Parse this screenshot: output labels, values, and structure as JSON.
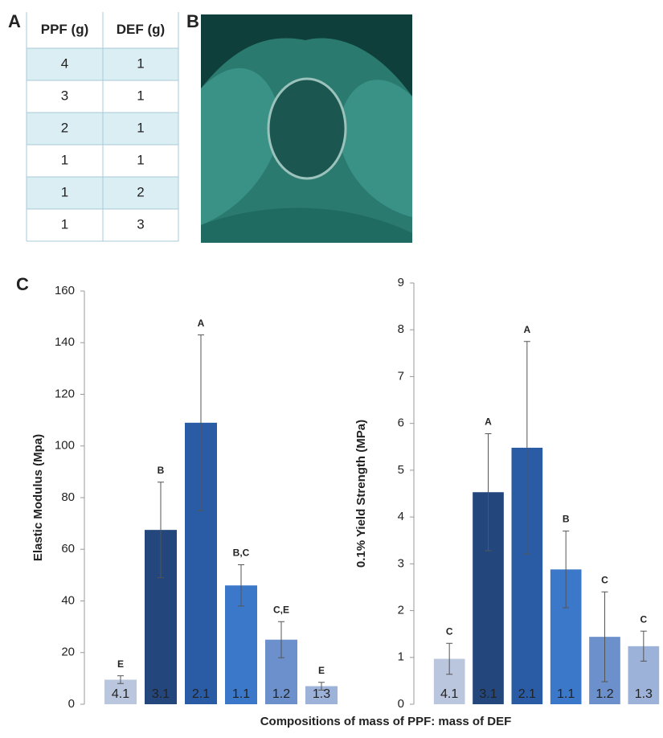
{
  "panel_labels": [
    "A",
    "B",
    "C"
  ],
  "table": {
    "header": [
      "PPF (g)",
      "DEF (g)"
    ],
    "rows": [
      [
        4,
        1
      ],
      [
        3,
        1
      ],
      [
        2,
        1
      ],
      [
        1,
        1
      ],
      [
        1,
        2
      ],
      [
        1,
        3
      ]
    ]
  },
  "x_label": "Compositions of mass of PPF: mass of DEF",
  "chart_data": [
    {
      "type": "bar",
      "y_label": "Elastic Modulus (Mpa)",
      "categories": [
        "4.1",
        "3.1",
        "2.1",
        "1.1",
        "1.2",
        "1.3"
      ],
      "values": [
        9.5,
        67.5,
        109,
        46,
        25,
        7
      ],
      "errors": [
        1.5,
        18.5,
        34,
        8,
        7,
        1.5
      ],
      "annotations": [
        "E",
        "B",
        "A",
        "B,C",
        "C,E",
        "E"
      ],
      "colors": [
        "#b9c6de",
        "#23467c",
        "#2a5ca5",
        "#3b78c9",
        "#6b90cb",
        "#9db2d8"
      ],
      "ylim": [
        0,
        160
      ],
      "yticks": [
        0,
        20,
        40,
        60,
        80,
        100,
        120,
        140,
        160
      ]
    },
    {
      "type": "bar",
      "y_label": "0.1% Yield Strength (MPa)",
      "categories": [
        "4.1",
        "3.1",
        "2.1",
        "1.1",
        "1.2",
        "1.3"
      ],
      "values": [
        0.97,
        4.53,
        5.48,
        2.88,
        1.44,
        1.24
      ],
      "errors": [
        0.33,
        1.25,
        2.27,
        0.82,
        0.96,
        0.32
      ],
      "annotations": [
        "C",
        "A",
        "A",
        "B",
        "C",
        "C"
      ],
      "colors": [
        "#b9c6de",
        "#23467c",
        "#2a5ca5",
        "#3b78c9",
        "#6b90cb",
        "#9db2d8"
      ],
      "ylim": [
        0,
        9
      ],
      "yticks": [
        0,
        1,
        2,
        3,
        4,
        5,
        6,
        7,
        8,
        9
      ]
    }
  ]
}
